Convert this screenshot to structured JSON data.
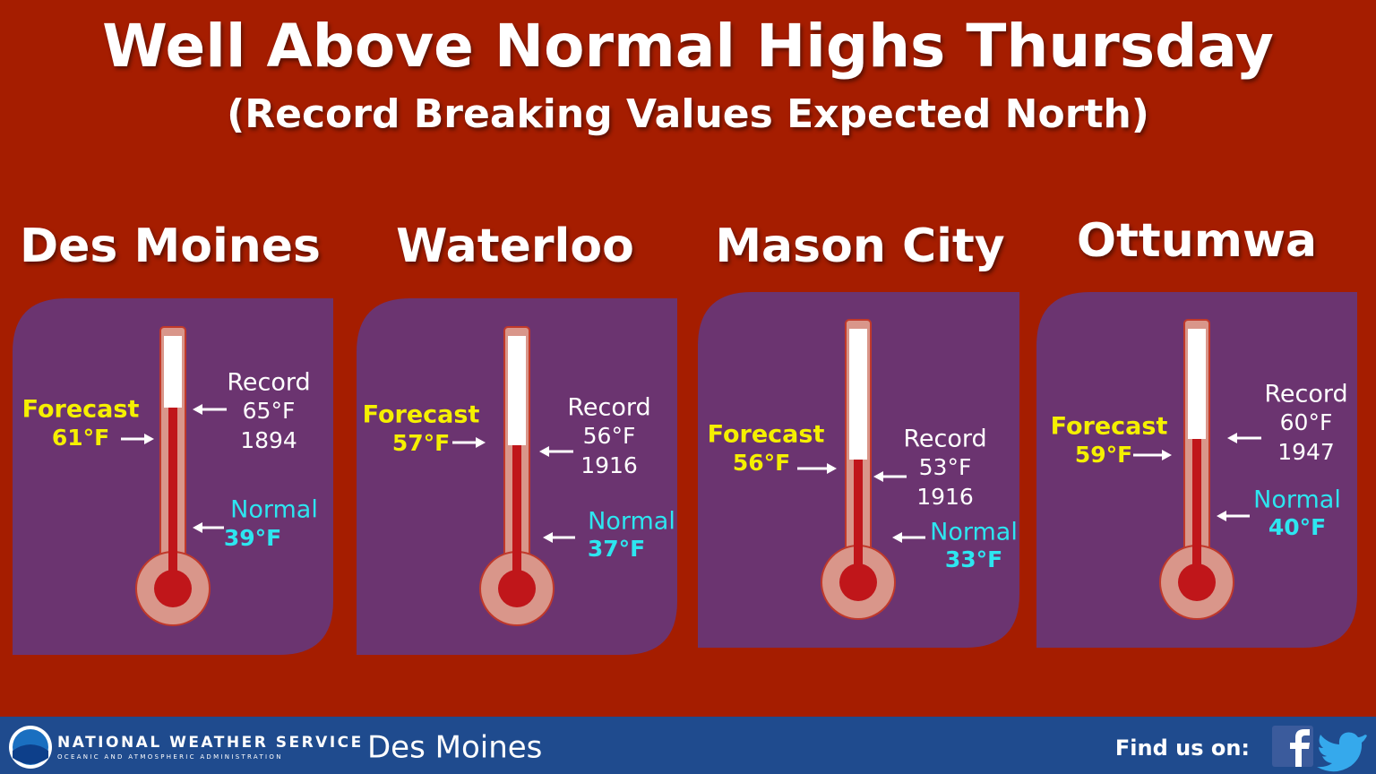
{
  "header": {
    "title": "Well Above Normal Highs Thursday",
    "subtitle": "(Record Breaking Values Expected North)"
  },
  "cities": [
    {
      "name": "Des Moines",
      "forecast_label": "Forecast",
      "forecast": "61°F",
      "record_label": "Record",
      "record": "65°F",
      "record_year": "1894",
      "normal_label": "Normal",
      "normal": "39°F"
    },
    {
      "name": "Waterloo",
      "forecast_label": "Forecast",
      "forecast": "57°F",
      "record_label": "Record",
      "record": "56°F",
      "record_year": "1916",
      "normal_label": "Normal",
      "normal": "37°F"
    },
    {
      "name": "Mason City",
      "forecast_label": "Forecast",
      "forecast": "56°F",
      "record_label": "Record",
      "record": "53°F",
      "record_year": "1916",
      "normal_label": "Normal",
      "normal": "33°F"
    },
    {
      "name": "Ottumwa",
      "forecast_label": "Forecast",
      "forecast": "59°F",
      "record_label": "Record",
      "record": "60°F",
      "record_year": "1947",
      "normal_label": "Normal",
      "normal": "40°F"
    }
  ],
  "footer": {
    "agency": "NATIONAL WEATHER SERVICE",
    "agency_sub": "OCEANIC AND ATMOSPHERIC ADMINISTRATION",
    "office": "Des Moines",
    "social": "Find us on:"
  }
}
